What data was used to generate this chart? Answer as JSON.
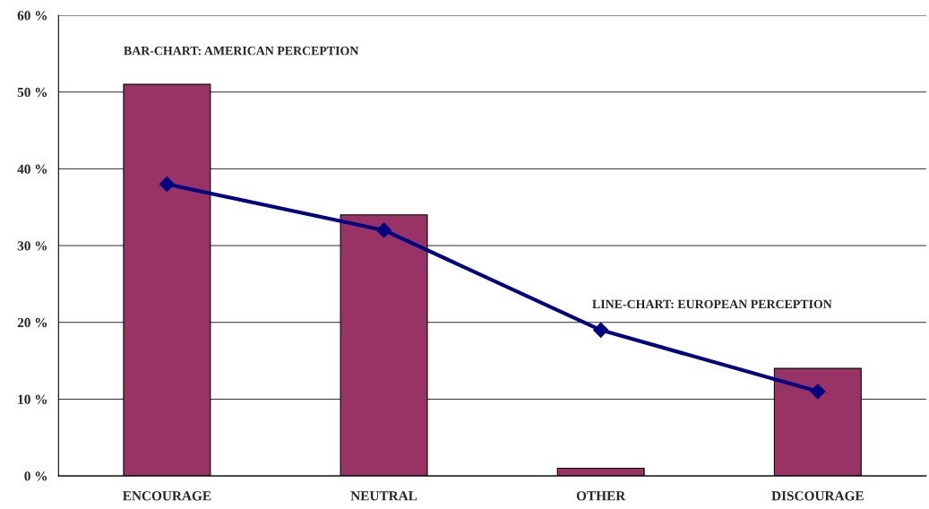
{
  "chart_data": {
    "type": "bar",
    "categories": [
      "ENCOURAGE",
      "NEUTRAL",
      "OTHER",
      "DISCOURAGE"
    ],
    "series": [
      {
        "name": "BAR-CHART: AMERICAN PERCEPTION",
        "color": "#993366",
        "values": [
          51,
          34,
          1,
          14
        ]
      },
      {
        "name": "LINE-CHART: EUROPEAN PERCEPTION",
        "type": "line",
        "color": "#000080",
        "values": [
          38,
          32,
          19,
          11
        ],
        "marker": "diamond",
        "line_style": "solid"
      }
    ],
    "ylim": [
      0,
      60
    ],
    "yticks": [
      {
        "value": 0,
        "label": "0 %"
      },
      {
        "value": 10,
        "label": "10 %"
      },
      {
        "value": 20,
        "label": "20 %"
      },
      {
        "value": 30,
        "label": "30 %"
      },
      {
        "value": 40,
        "label": "40 %"
      },
      {
        "value": 50,
        "label": "50 %"
      },
      {
        "value": 60,
        "label": "60 %"
      }
    ],
    "grid": "y",
    "legend": false
  }
}
